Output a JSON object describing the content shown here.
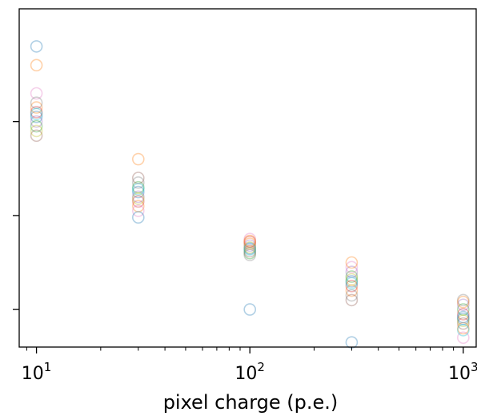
{
  "chart_data": {
    "type": "scatter",
    "title": "",
    "xlabel": "pixel charge (p.e.)",
    "ylabel": "",
    "x_scale": "log",
    "xlim": [
      8.3,
      1150
    ],
    "ylim": [
      0.6,
      4.2
    ],
    "x_ticks": [
      {
        "value": 10,
        "base": "10",
        "exp": "1"
      },
      {
        "value": 100,
        "base": "10",
        "exp": "2"
      },
      {
        "value": 1000,
        "base": "10",
        "exp": "3"
      }
    ],
    "y_ticks": [
      1,
      2,
      3
    ],
    "grid": false,
    "legend": "none",
    "marker": "open-circle",
    "colors": [
      "#1f77b4",
      "#ff7f0e",
      "#2ca02c",
      "#d62728",
      "#9467bd",
      "#8c564b",
      "#e377c2",
      "#7f7f7f",
      "#bcbd22",
      "#17becf"
    ],
    "series": [
      {
        "values": [
          [
            10,
            3.05
          ],
          [
            30,
            2.25
          ],
          [
            100,
            1.65
          ],
          [
            300,
            1.3
          ],
          [
            1000,
            0.9
          ]
        ]
      },
      {
        "values": [
          [
            10,
            3.15
          ],
          [
            30,
            2.1
          ],
          [
            100,
            1.7
          ],
          [
            300,
            1.2
          ],
          [
            1000,
            0.8
          ]
        ]
      },
      {
        "values": [
          [
            10,
            2.95
          ],
          [
            30,
            2.3
          ],
          [
            100,
            1.6
          ],
          [
            300,
            1.35
          ],
          [
            1000,
            1.0
          ]
        ]
      },
      {
        "values": [
          [
            10,
            3.1
          ],
          [
            30,
            2.15
          ],
          [
            100,
            1.72
          ],
          [
            300,
            1.25
          ],
          [
            1000,
            0.95
          ]
        ]
      },
      {
        "values": [
          [
            10,
            3.0
          ],
          [
            30,
            2.2
          ],
          [
            100,
            1.68
          ],
          [
            300,
            1.4
          ],
          [
            1000,
            1.05
          ]
        ]
      },
      {
        "values": [
          [
            10,
            2.85
          ],
          [
            30,
            2.4
          ],
          [
            100,
            1.62
          ],
          [
            300,
            1.1
          ],
          [
            1000,
            0.85
          ]
        ]
      },
      {
        "values": [
          [
            10,
            3.3
          ],
          [
            30,
            2.05
          ],
          [
            100,
            1.75
          ],
          [
            300,
            1.45
          ],
          [
            1000,
            0.7
          ]
        ]
      },
      {
        "values": [
          [
            10,
            3.2
          ],
          [
            30,
            2.35
          ],
          [
            100,
            1.58
          ],
          [
            300,
            1.15
          ],
          [
            1000,
            1.1
          ]
        ]
      },
      {
        "values": [
          [
            10,
            2.9
          ],
          [
            30,
            2.18
          ],
          [
            100,
            1.66
          ],
          [
            300,
            1.32
          ],
          [
            1000,
            0.88
          ]
        ]
      },
      {
        "values": [
          [
            10,
            3.08
          ],
          [
            30,
            2.28
          ],
          [
            100,
            1.64
          ],
          [
            300,
            1.28
          ],
          [
            1000,
            0.78
          ]
        ]
      },
      {
        "values": [
          [
            10,
            3.8
          ],
          [
            30,
            1.98
          ],
          [
            100,
            1.0
          ],
          [
            300,
            0.65
          ],
          [
            1000,
            0.92
          ]
        ]
      },
      {
        "values": [
          [
            10,
            3.6
          ],
          [
            30,
            2.6
          ],
          [
            100,
            1.73
          ],
          [
            300,
            1.5
          ],
          [
            1000,
            1.08
          ]
        ]
      }
    ]
  }
}
